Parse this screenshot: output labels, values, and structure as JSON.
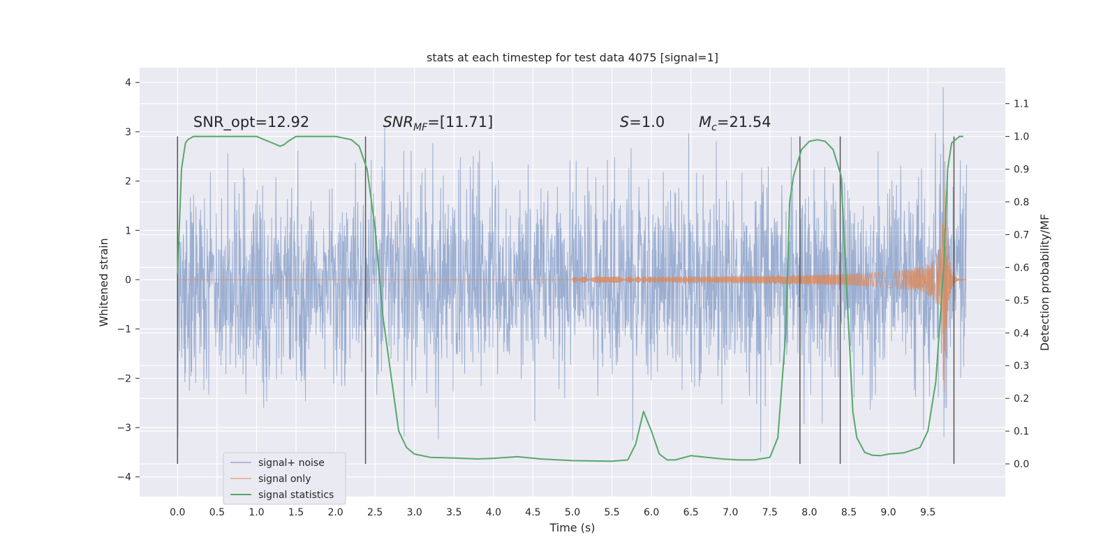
{
  "chart_data": {
    "type": "line",
    "title": "stats at each timestep for test data 4075 [signal=1]",
    "xlabel": "Time (s)",
    "ylabel": "Whitened strain",
    "y2label": "Detection probability/MF",
    "xlim": [
      -0.48,
      10.48
    ],
    "ylim": [
      -4.4,
      4.3
    ],
    "y2lim": [
      -0.1,
      1.21
    ],
    "xticks": [
      "0.0",
      "0.5",
      "1.0",
      "1.5",
      "2.0",
      "2.5",
      "3.0",
      "3.5",
      "4.0",
      "4.5",
      "5.0",
      "5.5",
      "6.0",
      "6.5",
      "7.0",
      "7.5",
      "8.0",
      "8.5",
      "9.0",
      "9.5"
    ],
    "xtick_values": [
      0.0,
      0.5,
      1.0,
      1.5,
      2.0,
      2.5,
      3.0,
      3.5,
      4.0,
      4.5,
      5.0,
      5.5,
      6.0,
      6.5,
      7.0,
      7.5,
      8.0,
      8.5,
      9.0,
      9.5
    ],
    "yticks": [
      "4",
      "3",
      "2",
      "1",
      "0",
      "−1",
      "−2",
      "−3",
      "−4"
    ],
    "ytick_values": [
      4,
      3,
      2,
      1,
      0,
      -1,
      -2,
      -3,
      -4
    ],
    "y2ticks": [
      "1.1",
      "1.0",
      "0.9",
      "0.8",
      "0.7",
      "0.6",
      "0.5",
      "0.4",
      "0.3",
      "0.2",
      "0.1",
      "0.0"
    ],
    "y2tick_values": [
      1.1,
      1.0,
      0.9,
      0.8,
      0.7,
      0.6,
      0.5,
      0.4,
      0.3,
      0.2,
      0.1,
      0.0
    ],
    "grid": true,
    "legend_position": "bottom-left",
    "series": [
      {
        "name": "signal+ noise",
        "color": "#4c72b0",
        "axis": "left",
        "x_range": [
          0.0,
          9.99
        ],
        "amplitude_sigma": 1.0,
        "peak_abs": 3.9
      },
      {
        "name": "signal only",
        "color": "#dd8452",
        "axis": "left",
        "chirp": {
          "t_start": 5.0,
          "t_merge": 9.7,
          "peak_amplitude": 2.8,
          "f_start": 9,
          "t_end": 9.99
        }
      },
      {
        "name": "signal statistics",
        "color": "#55a868",
        "axis": "right",
        "x": [
          0.0,
          0.05,
          0.1,
          0.13,
          0.2,
          0.4,
          0.7,
          1.0,
          1.1,
          1.2,
          1.3,
          1.35,
          1.4,
          1.5,
          1.6,
          1.8,
          2.0,
          2.1,
          2.2,
          2.3,
          2.4,
          2.5,
          2.6,
          2.8,
          2.9,
          3.0,
          3.2,
          3.5,
          3.8,
          4.0,
          4.3,
          4.6,
          5.0,
          5.5,
          5.7,
          5.8,
          5.9,
          6.0,
          6.1,
          6.2,
          6.3,
          6.5,
          6.7,
          6.9,
          7.1,
          7.3,
          7.5,
          7.6,
          7.7,
          7.75,
          7.8,
          7.9,
          8.0,
          8.1,
          8.2,
          8.3,
          8.4,
          8.5,
          8.55,
          8.6,
          8.7,
          8.8,
          8.9,
          9.0,
          9.2,
          9.4,
          9.5,
          9.6,
          9.7,
          9.75,
          9.8,
          9.85,
          9.9,
          9.95
        ],
        "y": [
          0.58,
          0.9,
          0.98,
          0.99,
          1.0,
          1.0,
          1.0,
          1.0,
          0.99,
          0.98,
          0.97,
          0.975,
          0.985,
          1.0,
          1.0,
          1.0,
          1.0,
          0.995,
          0.99,
          0.97,
          0.9,
          0.72,
          0.45,
          0.1,
          0.05,
          0.03,
          0.02,
          0.018,
          0.015,
          0.017,
          0.022,
          0.015,
          0.01,
          0.008,
          0.012,
          0.06,
          0.16,
          0.1,
          0.03,
          0.012,
          0.012,
          0.025,
          0.02,
          0.015,
          0.012,
          0.012,
          0.02,
          0.08,
          0.4,
          0.8,
          0.88,
          0.96,
          0.985,
          0.99,
          0.985,
          0.96,
          0.88,
          0.4,
          0.16,
          0.08,
          0.035,
          0.026,
          0.025,
          0.03,
          0.034,
          0.05,
          0.1,
          0.25,
          0.6,
          0.9,
          0.98,
          0.99,
          1.0,
          1.0
        ]
      }
    ],
    "vertical_markers": {
      "color": "#555555",
      "x": [
        0.0,
        2.38,
        7.88,
        8.39,
        9.83
      ]
    },
    "annotations": [
      {
        "id": "snr-opt",
        "text": "SNR_opt=12.92",
        "x": 0.2,
        "y": 3.1
      },
      {
        "id": "snr-mf",
        "text": "SNR",
        "sub": "MF",
        "tail": "=[11.71]",
        "x": 2.6,
        "y": 3.1,
        "italic": true
      },
      {
        "id": "s-value",
        "text": "S",
        "tail": "=1.0",
        "x": 5.6,
        "y": 3.1,
        "italic": true
      },
      {
        "id": "mc-value",
        "text": "M",
        "sub": "c",
        "tail": "=21.54",
        "x": 6.6,
        "y": 3.1,
        "italic": true
      }
    ]
  },
  "colors": {
    "figure_bg": "#ffffff",
    "axes_bg": "#eaeaf2",
    "grid": "#ffffff",
    "text": "#262626"
  }
}
